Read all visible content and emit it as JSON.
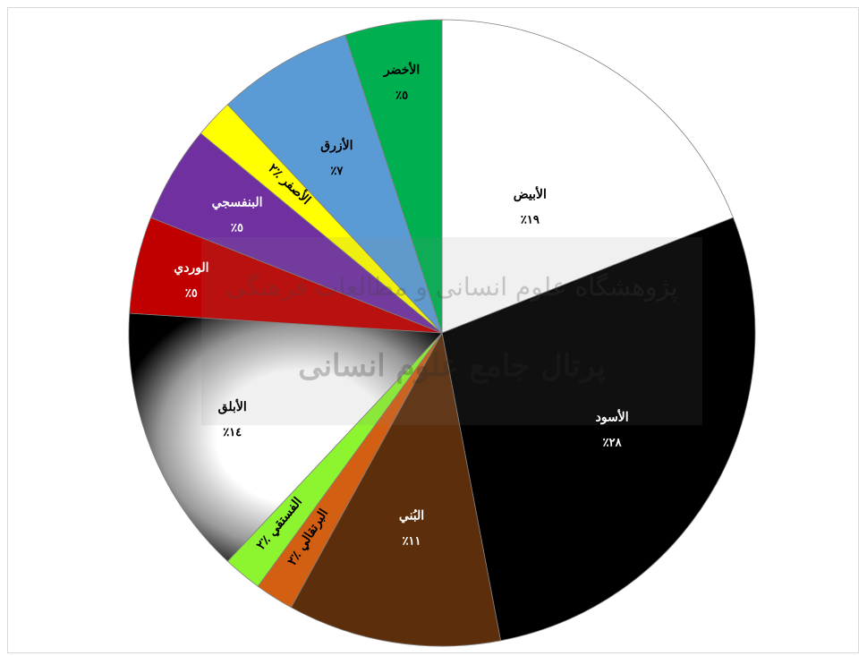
{
  "chart_data": {
    "type": "pie",
    "title": "",
    "legend": "none",
    "slices": [
      {
        "name": "الأبيض",
        "value": 19,
        "label": "٪١٩",
        "color": "#ffffff",
        "text_color": "#000000"
      },
      {
        "name": "الأسود",
        "value": 28,
        "label": "٪٢٨",
        "color": "#000000",
        "text_color": "#ffffff"
      },
      {
        "name": "البُني",
        "value": 11,
        "label": "٪١١",
        "color": "#5c2e0b",
        "text_color": "#ffffff"
      },
      {
        "name": "البرتقالي",
        "value": 2,
        "label": "٪٢",
        "color": "#d35f12",
        "text_color": "#000000"
      },
      {
        "name": "الفستقي",
        "value": 2,
        "label": "٪٢",
        "color": "#8cf52f",
        "text_color": "#000000"
      },
      {
        "name": "الأبلق",
        "value": 14,
        "label": "٪١٤",
        "color": "gradient",
        "text_color": "#000000"
      },
      {
        "name": "الوردي",
        "value": 5,
        "label": "٪٥",
        "color": "#c00000",
        "text_color": "#ffffff"
      },
      {
        "name": "البنفسجي",
        "value": 5,
        "label": "٪٥",
        "color": "#7030a0",
        "text_color": "#ffffff"
      },
      {
        "name": "الأصفر",
        "value": 2,
        "label": "٪٢",
        "color": "#ffff00",
        "text_color": "#000000"
      },
      {
        "name": "الأزرق",
        "value": 7,
        "label": "٪٧",
        "color": "#5b9bd5",
        "text_color": "#000000"
      },
      {
        "name": "الأخضر",
        "value": 5,
        "label": "٪٥",
        "color": "#00b050",
        "text_color": "#000000"
      }
    ]
  },
  "watermark": {
    "line1": "پژوهشگاه علوم انسانی و مطالعات فرهنگی",
    "line2": "پرتال جامع علوم انسانی"
  }
}
